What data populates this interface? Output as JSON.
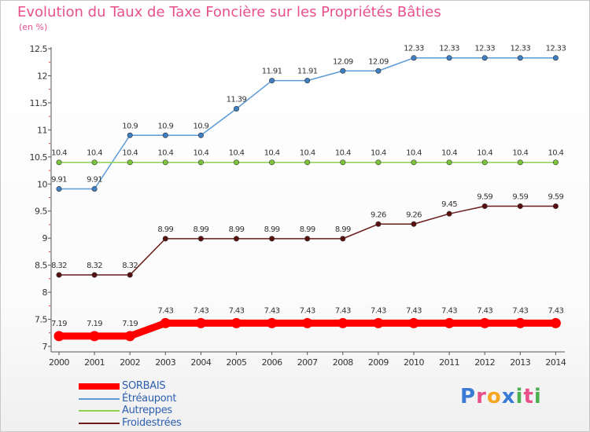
{
  "title": "Evolution du Taux de Taxe Foncière sur les Propriétés Bâties",
  "unit_label": "(en %)",
  "logo": {
    "text": "Proxiti",
    "letter_colors": [
      "#3a7bd5",
      "#e8508c",
      "#f5a623",
      "#3a7bd5",
      "#4caf50",
      "#e8508c",
      "#4caf50"
    ]
  },
  "chart_data": {
    "type": "line",
    "x": [
      "2000",
      "2001",
      "2002",
      "2003",
      "2004",
      "2005",
      "2006",
      "2007",
      "2008",
      "2009",
      "2010",
      "2011",
      "2012",
      "2013",
      "2014"
    ],
    "ylim": [
      7,
      12.5
    ],
    "yticks": [
      "7",
      "7.5",
      "8",
      "8.5",
      "9",
      "9.5",
      "10",
      "10.5",
      "11",
      "11.5",
      "12",
      "12.5"
    ],
    "grid": false,
    "legend_position": "bottom-left",
    "series": [
      {
        "name": "SORBAIS",
        "color": "#ff0000",
        "emphasis": true,
        "values": [
          7.19,
          7.19,
          7.19,
          7.43,
          7.43,
          7.43,
          7.43,
          7.43,
          7.43,
          7.43,
          7.43,
          7.43,
          7.43,
          7.43,
          7.43
        ],
        "labels": [
          "7.19",
          "7.19",
          "7.19",
          "7.43",
          "7.43",
          "7.43",
          "7.43",
          "7.43",
          "7.43",
          "7.43",
          "7.43",
          "7.43",
          "7.43",
          "7.43",
          "7.43"
        ]
      },
      {
        "name": "Étréaupont",
        "color": "#5b9bd5",
        "marker_color": "#3f7fc4",
        "values": [
          9.91,
          9.91,
          10.9,
          10.9,
          10.9,
          11.39,
          11.91,
          11.91,
          12.09,
          12.09,
          12.33,
          12.33,
          12.33,
          12.33,
          12.33
        ],
        "labels": [
          "9.91",
          "9.91",
          "10.9",
          "10.9",
          "10.9",
          "11.39",
          "11.91",
          "11.91",
          "12.09",
          "12.09",
          "12.33",
          "12.33",
          "12.33",
          "12.33",
          "12.33"
        ]
      },
      {
        "name": "Autreppes",
        "color": "#8fd14f",
        "marker_color": "#7cc43a",
        "values": [
          10.4,
          10.4,
          10.4,
          10.4,
          10.4,
          10.4,
          10.4,
          10.4,
          10.4,
          10.4,
          10.4,
          10.4,
          10.4,
          10.4,
          10.4
        ],
        "labels": [
          "10.4",
          "10.4",
          "10.4",
          "10.4",
          "10.4",
          "10.4",
          "10.4",
          "10.4",
          "10.4",
          "10.4",
          "10.4",
          "10.4",
          "10.4",
          "10.4",
          "10.4"
        ]
      },
      {
        "name": "Froidestrées",
        "color": "#6b1a1a",
        "marker_color": "#5a1010",
        "values": [
          8.32,
          8.32,
          8.32,
          8.99,
          8.99,
          8.99,
          8.99,
          8.99,
          8.99,
          9.26,
          9.26,
          9.45,
          9.59,
          9.59,
          9.59
        ],
        "labels": [
          "8.32",
          "8.32",
          "8.32",
          "8.99",
          "8.99",
          "8.99",
          "8.99",
          "8.99",
          "8.99",
          "9.26",
          "9.26",
          "9.45",
          "9.59",
          "9.59",
          "9.59"
        ]
      }
    ]
  }
}
